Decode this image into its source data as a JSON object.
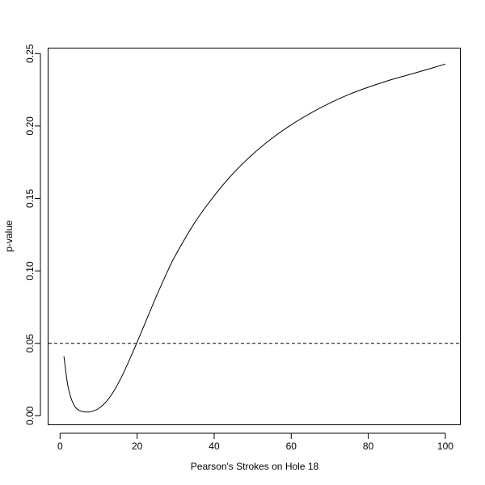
{
  "chart_data": {
    "type": "line",
    "title": "",
    "xlabel": "Pearson's Strokes on Hole 18",
    "ylabel": "p-value",
    "xlim": [
      -3,
      104
    ],
    "ylim": [
      -0.0065,
      0.2535
    ],
    "xticks": [
      0,
      20,
      40,
      60,
      80,
      100
    ],
    "yticks": [
      0.0,
      0.05,
      0.1,
      0.15,
      0.2,
      0.25
    ],
    "xtick_labels": [
      "0",
      "20",
      "40",
      "60",
      "80",
      "100"
    ],
    "ytick_labels": [
      "0.00",
      "0.05",
      "0.10",
      "0.15",
      "0.20",
      "0.25"
    ],
    "grid": false,
    "reference_line": {
      "y": 0.05,
      "style": "dashed"
    },
    "series": [
      {
        "x": [
          1,
          2,
          3,
          4,
          5,
          6,
          7,
          8,
          10,
          12,
          14,
          16,
          18,
          20,
          22,
          25,
          28,
          30,
          35,
          40,
          45,
          50,
          55,
          60,
          65,
          70,
          75,
          80,
          85,
          90,
          95,
          100
        ],
        "y": [
          0.041,
          0.021,
          0.011,
          0.0058,
          0.0037,
          0.0028,
          0.0026,
          0.0028,
          0.005,
          0.0098,
          0.0172,
          0.027,
          0.0385,
          0.0508,
          0.0635,
          0.0825,
          0.1003,
          0.111,
          0.1335,
          0.1518,
          0.1675,
          0.1805,
          0.1915,
          0.2008,
          0.2088,
          0.2158,
          0.2218,
          0.2268,
          0.2312,
          0.235,
          0.2388,
          0.2428
        ]
      }
    ]
  }
}
